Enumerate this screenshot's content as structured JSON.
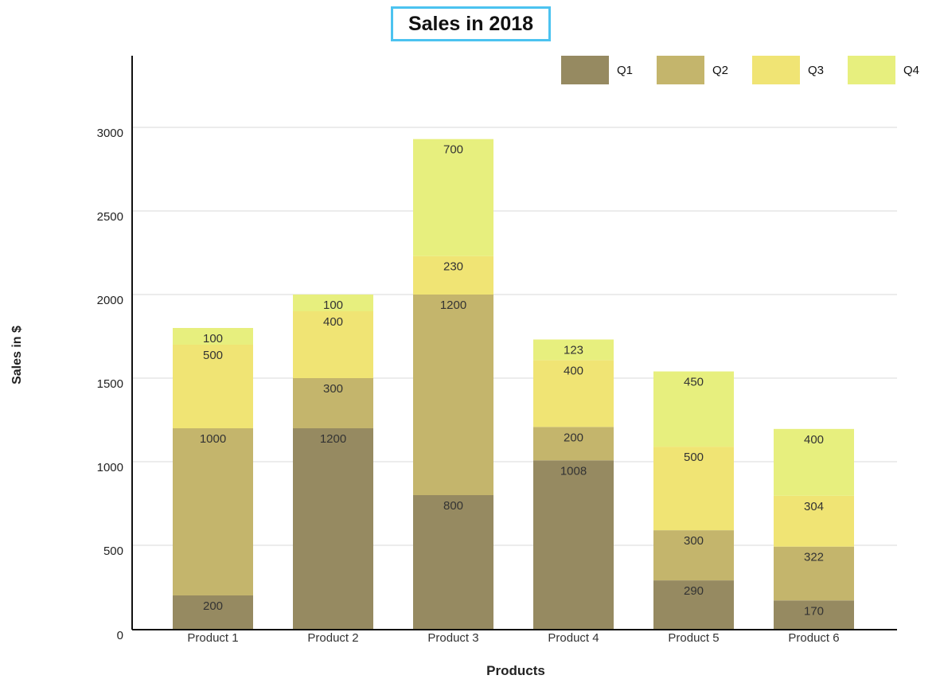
{
  "chart_data": {
    "type": "bar",
    "stacked": true,
    "title": "Sales in 2018",
    "xlabel": "Products",
    "ylabel": "Sales in $",
    "categories": [
      "Product 1",
      "Product 2",
      "Product 3",
      "Product 4",
      "Product 5",
      "Product 6"
    ],
    "series": [
      {
        "name": "Q1",
        "color": "#968a61",
        "values": [
          200,
          1200,
          800,
          1008,
          290,
          170
        ]
      },
      {
        "name": "Q2",
        "color": "#c4b56c",
        "values": [
          1000,
          300,
          1200,
          200,
          300,
          322
        ]
      },
      {
        "name": "Q3",
        "color": "#f0e474",
        "values": [
          500,
          400,
          230,
          400,
          500,
          304
        ]
      },
      {
        "name": "Q4",
        "color": "#e7ef7e",
        "values": [
          100,
          100,
          700,
          123,
          450,
          400
        ]
      }
    ],
    "ylim": [
      0,
      3000
    ],
    "yticks": [
      0,
      500,
      1000,
      1500,
      2000,
      2500,
      3000
    ],
    "grid": true,
    "legend_position": "top-right"
  }
}
